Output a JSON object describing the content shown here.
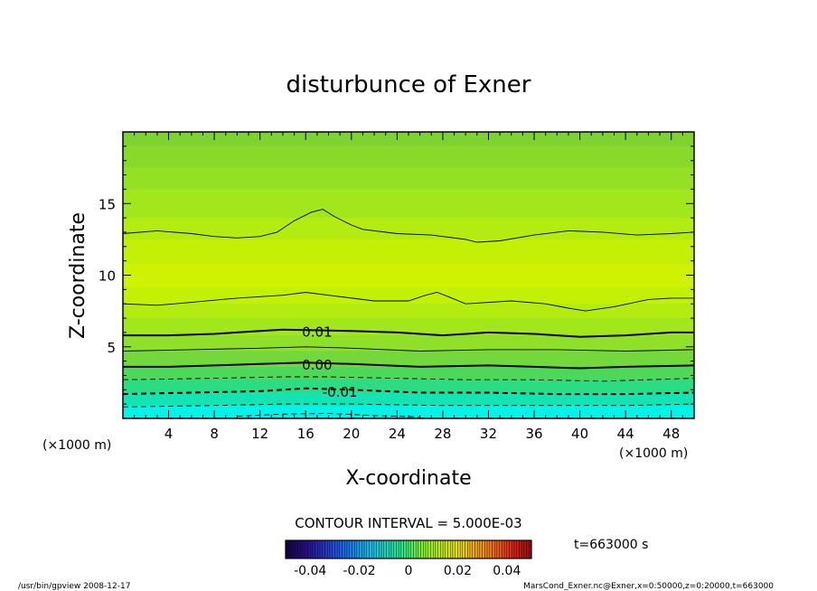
{
  "chart_data": {
    "type": "contour",
    "title": "disturbunce of Exner",
    "xlabel": "X-coordinate",
    "ylabel": "Z-coordinate",
    "x_unit": "(×1000 m)",
    "y_unit": "(×1000 m)",
    "xlim": [
      0,
      50
    ],
    "ylim": [
      0,
      20
    ],
    "x_ticks": [
      4,
      8,
      12,
      16,
      20,
      24,
      28,
      32,
      36,
      40,
      44,
      48
    ],
    "y_ticks": [
      5,
      10,
      15
    ],
    "contour_interval_text": "CONTOUR INTERVAL = 5.000E-03",
    "contour_labels": [
      {
        "text": "0.01",
        "x": 17,
        "z": 6.1
      },
      {
        "text": "0.00",
        "x": 17,
        "z": 3.8
      },
      {
        "text": "-0.01",
        "x": 19,
        "z": 1.9
      }
    ],
    "contours": [
      {
        "level": 0.02,
        "style": "thin",
        "points": [
          [
            0,
            12.9
          ],
          [
            3,
            13.1
          ],
          [
            6,
            12.9
          ],
          [
            8,
            12.7
          ],
          [
            10,
            12.6
          ],
          [
            12,
            12.7
          ],
          [
            13.5,
            13.0
          ],
          [
            15,
            13.8
          ],
          [
            16.5,
            14.4
          ],
          [
            17.5,
            14.6
          ],
          [
            18.5,
            14.1
          ],
          [
            20,
            13.5
          ],
          [
            21,
            13.2
          ],
          [
            24,
            12.9
          ],
          [
            27,
            12.8
          ],
          [
            30,
            12.5
          ],
          [
            31,
            12.3
          ],
          [
            33,
            12.4
          ],
          [
            36,
            12.8
          ],
          [
            39,
            13.1
          ],
          [
            42,
            13.0
          ],
          [
            45,
            12.8
          ],
          [
            48,
            12.9
          ],
          [
            50,
            13.0
          ]
        ]
      },
      {
        "level": 0.015,
        "style": "thin",
        "points": [
          [
            0,
            8.0
          ],
          [
            3,
            7.9
          ],
          [
            6,
            8.1
          ],
          [
            10,
            8.4
          ],
          [
            14,
            8.6
          ],
          [
            16,
            8.8
          ],
          [
            18,
            8.6
          ],
          [
            22,
            8.2
          ],
          [
            25,
            8.2
          ],
          [
            26.5,
            8.6
          ],
          [
            27.5,
            8.8
          ],
          [
            28.5,
            8.5
          ],
          [
            30,
            8.0
          ],
          [
            34,
            8.2
          ],
          [
            37,
            8.0
          ],
          [
            39,
            7.7
          ],
          [
            40.5,
            7.5
          ],
          [
            43,
            7.8
          ],
          [
            46,
            8.3
          ],
          [
            48,
            8.4
          ],
          [
            50,
            8.4
          ]
        ]
      },
      {
        "level": 0.01,
        "style": "bold",
        "points": [
          [
            0,
            5.8
          ],
          [
            4,
            5.8
          ],
          [
            8,
            5.9
          ],
          [
            12,
            6.1
          ],
          [
            14,
            6.2
          ],
          [
            20,
            6.1
          ],
          [
            24,
            6.0
          ],
          [
            28,
            5.8
          ],
          [
            32,
            6.0
          ],
          [
            36,
            5.9
          ],
          [
            40,
            5.7
          ],
          [
            44,
            5.8
          ],
          [
            48,
            6.0
          ],
          [
            50,
            6.0
          ]
        ]
      },
      {
        "level": 0.005,
        "style": "thin",
        "points": [
          [
            0,
            4.7
          ],
          [
            6,
            4.8
          ],
          [
            12,
            4.9
          ],
          [
            16,
            5.0
          ],
          [
            20,
            4.9
          ],
          [
            26,
            4.7
          ],
          [
            32,
            4.8
          ],
          [
            38,
            4.8
          ],
          [
            44,
            4.7
          ],
          [
            50,
            4.8
          ]
        ]
      },
      {
        "level": 0.0,
        "style": "bold",
        "points": [
          [
            0,
            3.6
          ],
          [
            4,
            3.6
          ],
          [
            8,
            3.7
          ],
          [
            12,
            3.8
          ],
          [
            16,
            3.9
          ],
          [
            20,
            3.8
          ],
          [
            26,
            3.6
          ],
          [
            32,
            3.7
          ],
          [
            36,
            3.6
          ],
          [
            40,
            3.5
          ],
          [
            44,
            3.6
          ],
          [
            50,
            3.7
          ]
        ]
      },
      {
        "level": -0.005,
        "style": "dashed",
        "points": [
          [
            0,
            2.7
          ],
          [
            8,
            2.8
          ],
          [
            14,
            2.9
          ],
          [
            18,
            2.9
          ],
          [
            24,
            2.8
          ],
          [
            30,
            2.7
          ],
          [
            36,
            2.7
          ],
          [
            42,
            2.6
          ],
          [
            50,
            2.8
          ]
        ]
      },
      {
        "level": -0.01,
        "style": "dashed-bold",
        "points": [
          [
            0,
            1.7
          ],
          [
            6,
            1.8
          ],
          [
            12,
            1.9
          ],
          [
            16,
            2.1
          ],
          [
            20,
            2.0
          ],
          [
            26,
            1.8
          ],
          [
            32,
            1.8
          ],
          [
            38,
            1.7
          ],
          [
            44,
            1.7
          ],
          [
            50,
            1.8
          ]
        ]
      },
      {
        "level": -0.015,
        "style": "dashed",
        "points": [
          [
            0,
            0.8
          ],
          [
            8,
            0.9
          ],
          [
            14,
            1.0
          ],
          [
            20,
            1.0
          ],
          [
            28,
            0.9
          ],
          [
            36,
            0.9
          ],
          [
            44,
            0.9
          ],
          [
            50,
            1.0
          ]
        ]
      },
      {
        "level": -0.02,
        "style": "dashed",
        "points": [
          [
            10,
            0.15
          ],
          [
            14,
            0.3
          ],
          [
            18,
            0.35
          ],
          [
            22,
            0.2
          ],
          [
            26,
            0.1
          ]
        ]
      }
    ],
    "fill_bands": [
      {
        "z": [
          19.0,
          20.0
        ],
        "color": "#7ed32e"
      },
      {
        "z": [
          17.5,
          19.0
        ],
        "color": "#88d92a"
      },
      {
        "z": [
          16.0,
          17.5
        ],
        "color": "#94e024"
      },
      {
        "z": [
          14.0,
          16.0
        ],
        "color": "#a2e61c"
      },
      {
        "z": [
          12.5,
          14.0
        ],
        "color": "#b4ec12"
      },
      {
        "z": [
          10.8,
          12.5
        ],
        "color": "#c4f006"
      },
      {
        "z": [
          9.2,
          10.8
        ],
        "color": "#cef202"
      },
      {
        "z": [
          8.0,
          9.2
        ],
        "color": "#c4f006"
      },
      {
        "z": [
          7.0,
          8.0
        ],
        "color": "#b4ec12"
      },
      {
        "z": [
          5.8,
          7.0
        ],
        "color": "#a2e61c"
      },
      {
        "z": [
          4.7,
          5.8
        ],
        "color": "#8ee028"
      },
      {
        "z": [
          3.6,
          4.7
        ],
        "color": "#72d83c"
      },
      {
        "z": [
          2.7,
          3.6
        ],
        "color": "#4ed85a"
      },
      {
        "z": [
          1.8,
          2.7
        ],
        "color": "#2cdc84"
      },
      {
        "z": [
          0.9,
          1.8
        ],
        "color": "#14e4b4"
      },
      {
        "z": [
          0.0,
          0.9
        ],
        "color": "#04f2e8"
      }
    ],
    "colorbar": {
      "tick_labels": [
        "-0.04",
        "-0.02",
        "0",
        "0.02",
        "0.04"
      ],
      "tick_values": [
        -0.04,
        -0.02,
        0,
        0.02,
        0.04
      ],
      "range": [
        -0.05,
        0.05
      ]
    },
    "time_label": "t=663000 s"
  },
  "footer": {
    "left": "/usr/bin/gpview   2008-12-17",
    "right": "MarsCond_Exner.nc@Exner,x=0:50000,z=0:20000,t=663000"
  }
}
